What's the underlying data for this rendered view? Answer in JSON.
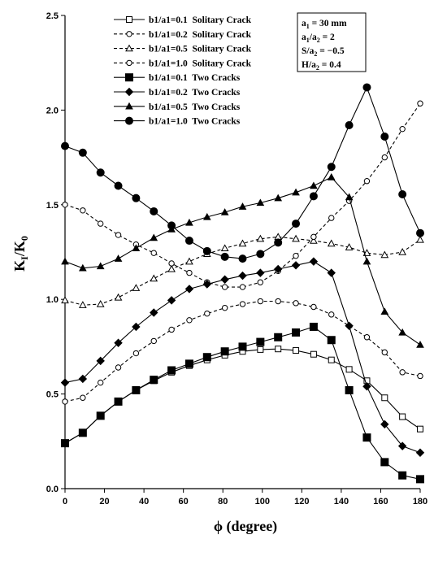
{
  "chart_data": {
    "type": "line",
    "xlabel": "ϕ (degree)",
    "ylabel": {
      "main": "K",
      "sub1": "I",
      "slash": "/K",
      "sub2": "0"
    },
    "xlim": [
      0,
      180
    ],
    "ylim": [
      0,
      2.5
    ],
    "x_ticks": [
      "0",
      "20",
      "40",
      "60",
      "80",
      "100",
      "120",
      "140",
      "160",
      "180"
    ],
    "y_ticks": [
      "0.0",
      "0.5",
      "1.0",
      "1.5",
      "2.0",
      "2.5"
    ],
    "grid": false,
    "legend_position": "top-center",
    "parameters": [
      {
        "main": "a",
        "sub": "1",
        "rest": " = 30 mm"
      },
      {
        "main": "a",
        "sub": "1",
        "rest": "/a",
        "sub2": "2",
        "rest2": " = 2"
      },
      {
        "main": "S/a",
        "sub": "2",
        "rest": " = −0.5"
      },
      {
        "main": "H/a",
        "sub": "2",
        "rest": " = 0.4"
      }
    ],
    "series": [
      {
        "name": "b1/a1=0.1  Solitary Crack",
        "marker": "square-open",
        "dashed": true,
        "line": "solid",
        "x": [
          0,
          9,
          18,
          27,
          36,
          45,
          54,
          63,
          72,
          81,
          90,
          99,
          108,
          117,
          126,
          135,
          144,
          153,
          162,
          171,
          180
        ],
        "y": [
          0.24,
          0.295,
          0.385,
          0.46,
          0.52,
          0.57,
          0.615,
          0.65,
          0.68,
          0.705,
          0.725,
          0.735,
          0.738,
          0.73,
          0.71,
          0.68,
          0.63,
          0.57,
          0.48,
          0.38,
          0.315
        ]
      },
      {
        "name": "b1/a1=0.2  Solitary Crack",
        "marker": "circle-open",
        "dashed": true,
        "line": "dashed",
        "x": [
          0,
          9,
          18,
          27,
          36,
          45,
          54,
          63,
          72,
          81,
          90,
          99,
          108,
          117,
          126,
          135,
          144,
          153,
          162,
          171,
          180
        ],
        "y": [
          0.46,
          0.48,
          0.56,
          0.64,
          0.715,
          0.78,
          0.84,
          0.89,
          0.925,
          0.955,
          0.975,
          0.99,
          0.99,
          0.98,
          0.96,
          0.92,
          0.86,
          0.8,
          0.72,
          0.615,
          0.595
        ]
      },
      {
        "name": "b1/a1=0.5  Solitary Crack",
        "marker": "triangle-open",
        "dashed": true,
        "line": "dashed",
        "x": [
          0,
          9,
          18,
          27,
          36,
          45,
          54,
          63,
          72,
          81,
          90,
          99,
          108,
          117,
          126,
          135,
          144,
          153,
          162,
          171,
          180
        ],
        "y": [
          0.995,
          0.97,
          0.975,
          1.01,
          1.06,
          1.11,
          1.16,
          1.2,
          1.24,
          1.27,
          1.295,
          1.32,
          1.33,
          1.32,
          1.31,
          1.295,
          1.275,
          1.245,
          1.235,
          1.25,
          1.315
        ]
      },
      {
        "name": "b1/a1=1.0  Solitary Crack",
        "marker": "circle-open",
        "dashed": true,
        "line": "dashed",
        "x": [
          0,
          9,
          18,
          27,
          36,
          45,
          54,
          63,
          72,
          81,
          90,
          99,
          108,
          117,
          126,
          135,
          144,
          153,
          162,
          171,
          180
        ],
        "y": [
          1.5,
          1.47,
          1.4,
          1.34,
          1.29,
          1.245,
          1.19,
          1.14,
          1.09,
          1.065,
          1.065,
          1.09,
          1.15,
          1.23,
          1.33,
          1.43,
          1.52,
          1.625,
          1.75,
          1.9,
          2.035
        ]
      },
      {
        "name": "b1/a1=0.1  Two Cracks",
        "marker": "square-filled",
        "dashed": false,
        "line": "solid",
        "x": [
          0,
          9,
          18,
          27,
          36,
          45,
          54,
          63,
          72,
          81,
          90,
          99,
          108,
          117,
          126,
          135,
          144,
          153,
          162,
          171,
          180
        ],
        "y": [
          0.24,
          0.295,
          0.385,
          0.46,
          0.52,
          0.575,
          0.625,
          0.66,
          0.695,
          0.725,
          0.75,
          0.775,
          0.8,
          0.825,
          0.855,
          0.785,
          0.52,
          0.27,
          0.14,
          0.07,
          0.05
        ]
      },
      {
        "name": "b1/a1=0.2  Two Cracks",
        "marker": "diamond-filled",
        "dashed": false,
        "line": "solid",
        "x": [
          0,
          9,
          18,
          27,
          36,
          45,
          54,
          63,
          72,
          81,
          90,
          99,
          108,
          117,
          126,
          135,
          144,
          153,
          162,
          171,
          180
        ],
        "y": [
          0.56,
          0.58,
          0.675,
          0.77,
          0.855,
          0.93,
          0.995,
          1.055,
          1.08,
          1.105,
          1.125,
          1.14,
          1.16,
          1.18,
          1.2,
          1.14,
          0.86,
          0.54,
          0.34,
          0.225,
          0.19
        ]
      },
      {
        "name": "b1/a1=0.5  Two Cracks",
        "marker": "triangle-filled",
        "dashed": false,
        "line": "solid",
        "x": [
          0,
          9,
          18,
          27,
          36,
          45,
          54,
          63,
          72,
          81,
          90,
          99,
          108,
          117,
          126,
          135,
          144,
          153,
          162,
          171,
          180
        ],
        "y": [
          1.2,
          1.165,
          1.175,
          1.215,
          1.27,
          1.325,
          1.37,
          1.405,
          1.435,
          1.46,
          1.49,
          1.51,
          1.535,
          1.565,
          1.6,
          1.645,
          1.54,
          1.2,
          0.935,
          0.825,
          0.76
        ]
      },
      {
        "name": "b1/a1=1.0  Two Cracks",
        "marker": "circle-filled",
        "dashed": false,
        "line": "solid",
        "x": [
          0,
          9,
          18,
          27,
          36,
          45,
          54,
          63,
          72,
          81,
          90,
          99,
          108,
          117,
          126,
          135,
          144,
          153,
          162,
          171,
          180
        ],
        "y": [
          1.81,
          1.775,
          1.67,
          1.6,
          1.535,
          1.465,
          1.39,
          1.31,
          1.255,
          1.225,
          1.215,
          1.24,
          1.3,
          1.4,
          1.545,
          1.7,
          1.92,
          2.12,
          1.86,
          1.555,
          1.35
        ]
      }
    ]
  }
}
